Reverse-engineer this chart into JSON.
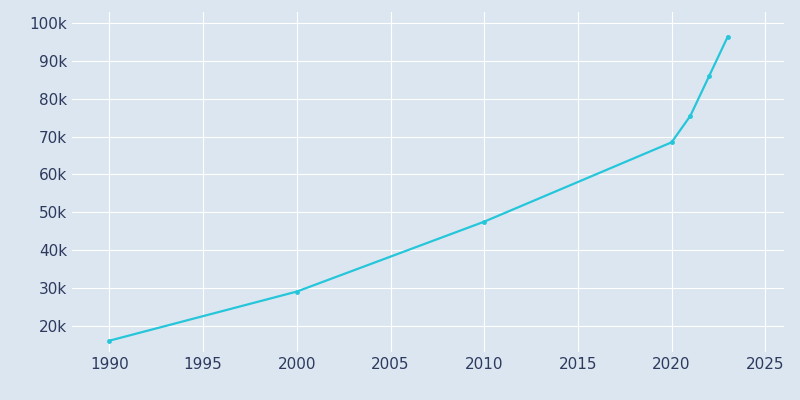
{
  "years": [
    1990,
    2000,
    2010,
    2020,
    2021,
    2022,
    2023
  ],
  "population": [
    16000,
    29000,
    47500,
    68500,
    75500,
    86000,
    96500
  ],
  "line_color": "#26C6DA",
  "marker_color": "#26C6DA",
  "background_color": "#dce6f0",
  "plot_background": "#dce6f0",
  "grid_color": "#ffffff",
  "tick_label_color": "#2d3a5e",
  "xlim": [
    1988,
    2026
  ],
  "ylim": [
    13000,
    103000
  ],
  "xticks": [
    1990,
    1995,
    2000,
    2005,
    2010,
    2015,
    2020,
    2025
  ],
  "yticks": [
    20000,
    30000,
    40000,
    50000,
    60000,
    70000,
    80000,
    90000,
    100000
  ],
  "linewidth": 1.6,
  "markersize": 3.5,
  "tick_fontsize": 11
}
